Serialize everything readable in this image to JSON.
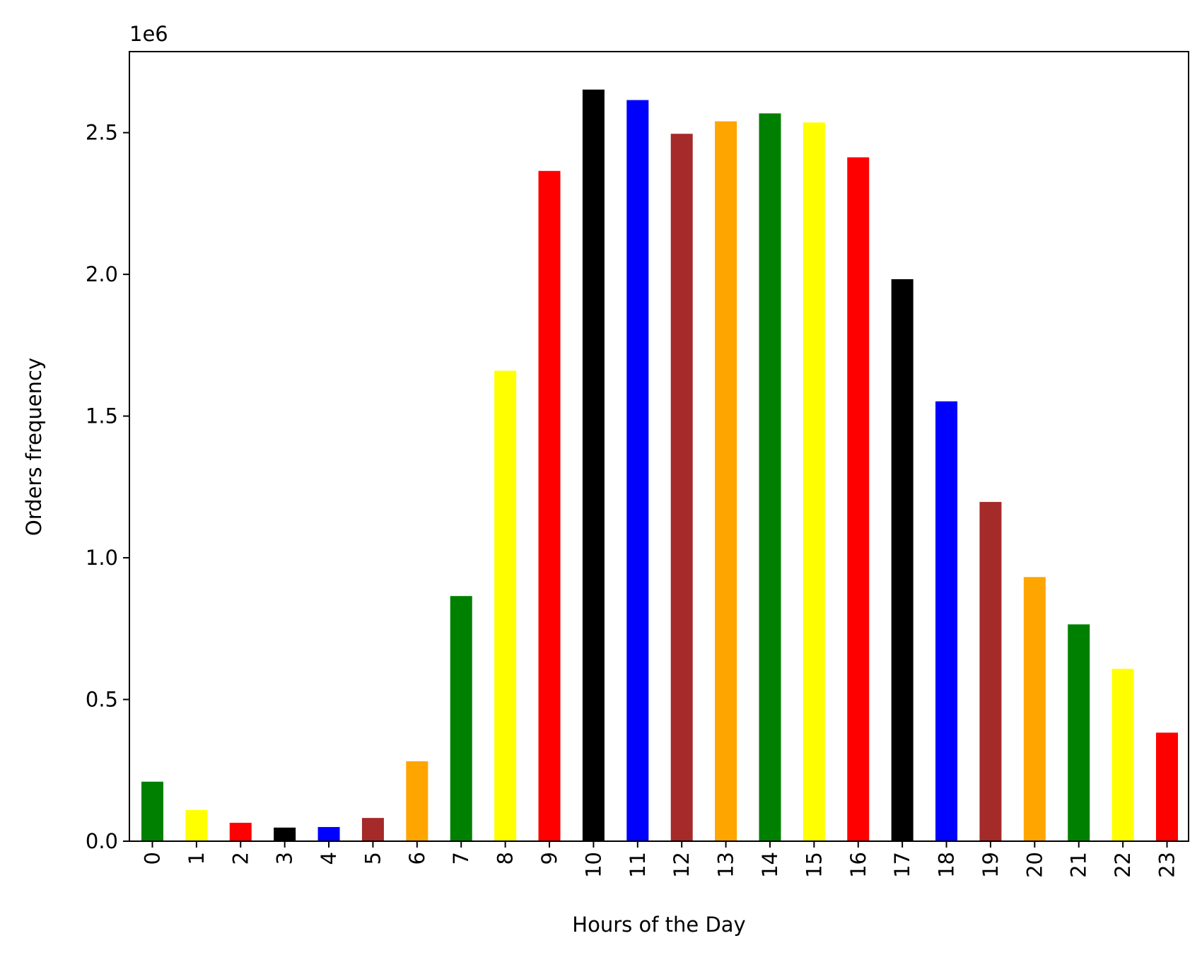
{
  "chart_data": {
    "type": "bar",
    "xlabel": "Hours of the Day",
    "ylabel": "Orders frequency",
    "y_offset_label": "1e6",
    "y_scale": 1000000,
    "ylim": [
      0,
      2.786
    ],
    "yticks": [
      0.0,
      0.5,
      1.0,
      1.5,
      2.0,
      2.5
    ],
    "ytick_labels": [
      "0.0",
      "0.5",
      "1.0",
      "1.5",
      "2.0",
      "2.5"
    ],
    "grid": false,
    "legend": "none",
    "categories": [
      "0",
      "1",
      "2",
      "3",
      "4",
      "5",
      "6",
      "7",
      "8",
      "9",
      "10",
      "11",
      "12",
      "13",
      "14",
      "15",
      "16",
      "17",
      "18",
      "19",
      "20",
      "21",
      "22",
      "23"
    ],
    "values": [
      210000,
      110000,
      65000,
      48000,
      50000,
      82000,
      282000,
      865000,
      1660000,
      2365000,
      2652000,
      2615000,
      2496000,
      2540000,
      2568000,
      2536000,
      2413000,
      1983000,
      1552000,
      1197000,
      932000,
      765000,
      608000,
      383000
    ],
    "colors": [
      "#008000",
      "#ffff00",
      "#ff0000",
      "#000000",
      "#0000ff",
      "#a52a2a",
      "#ffa500",
      "#008000",
      "#ffff00",
      "#ff0000",
      "#000000",
      "#0000ff",
      "#a52a2a",
      "#ffa500",
      "#008000",
      "#ffff00",
      "#ff0000",
      "#000000",
      "#0000ff",
      "#a52a2a",
      "#ffa500",
      "#008000",
      "#ffff00",
      "#ff0000"
    ]
  }
}
